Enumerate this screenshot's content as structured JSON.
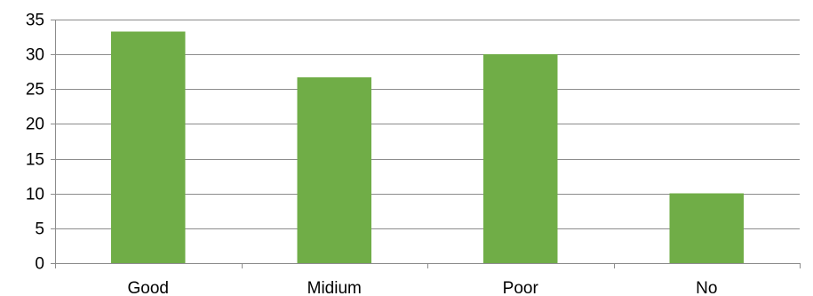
{
  "chart_data": {
    "type": "bar",
    "title": "",
    "xlabel": "",
    "ylabel": "",
    "categories": [
      "Good",
      "Midium",
      "Poor",
      "No"
    ],
    "values": [
      33.3,
      26.7,
      30,
      10
    ],
    "ylim": [
      0,
      35
    ],
    "yticks": [
      0,
      5,
      10,
      15,
      20,
      25,
      30,
      35
    ],
    "ytick_labels": [
      "0",
      "5",
      "10",
      "15",
      "20",
      "25",
      "30",
      "35"
    ],
    "grid": true,
    "legend": "none",
    "colors": {
      "bar": "#70ad47",
      "grid": "#8c8c8c",
      "axis": "#8c8c8c",
      "text": "#000000",
      "background": "#ffffff"
    }
  }
}
